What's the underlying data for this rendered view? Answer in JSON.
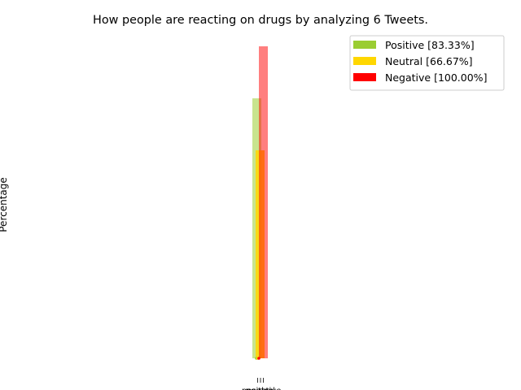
{
  "chart_data": {
    "type": "bar",
    "title": "How people are reacting on drugs by analyzing 6 Tweets.",
    "xlabel": "",
    "ylabel": "Percentage",
    "grid": false,
    "legend_position": "top-right",
    "categories": [
      "positive",
      "neutral",
      "negative"
    ],
    "ylim": [
      0,
      105
    ],
    "series": [
      {
        "name": "Positive [83.33%]",
        "category": "positive",
        "value": 83.33,
        "color": "#9acd32",
        "alpha": 0.55
      },
      {
        "name": "Neutral [66.67%]",
        "category": "neutral",
        "value": 66.67,
        "color": "#ffd700",
        "alpha": 0.85
      },
      {
        "name": "Negative [100.00%]",
        "category": "negative",
        "value": 100.0,
        "color": "#ff0000",
        "alpha": 0.5
      }
    ]
  }
}
